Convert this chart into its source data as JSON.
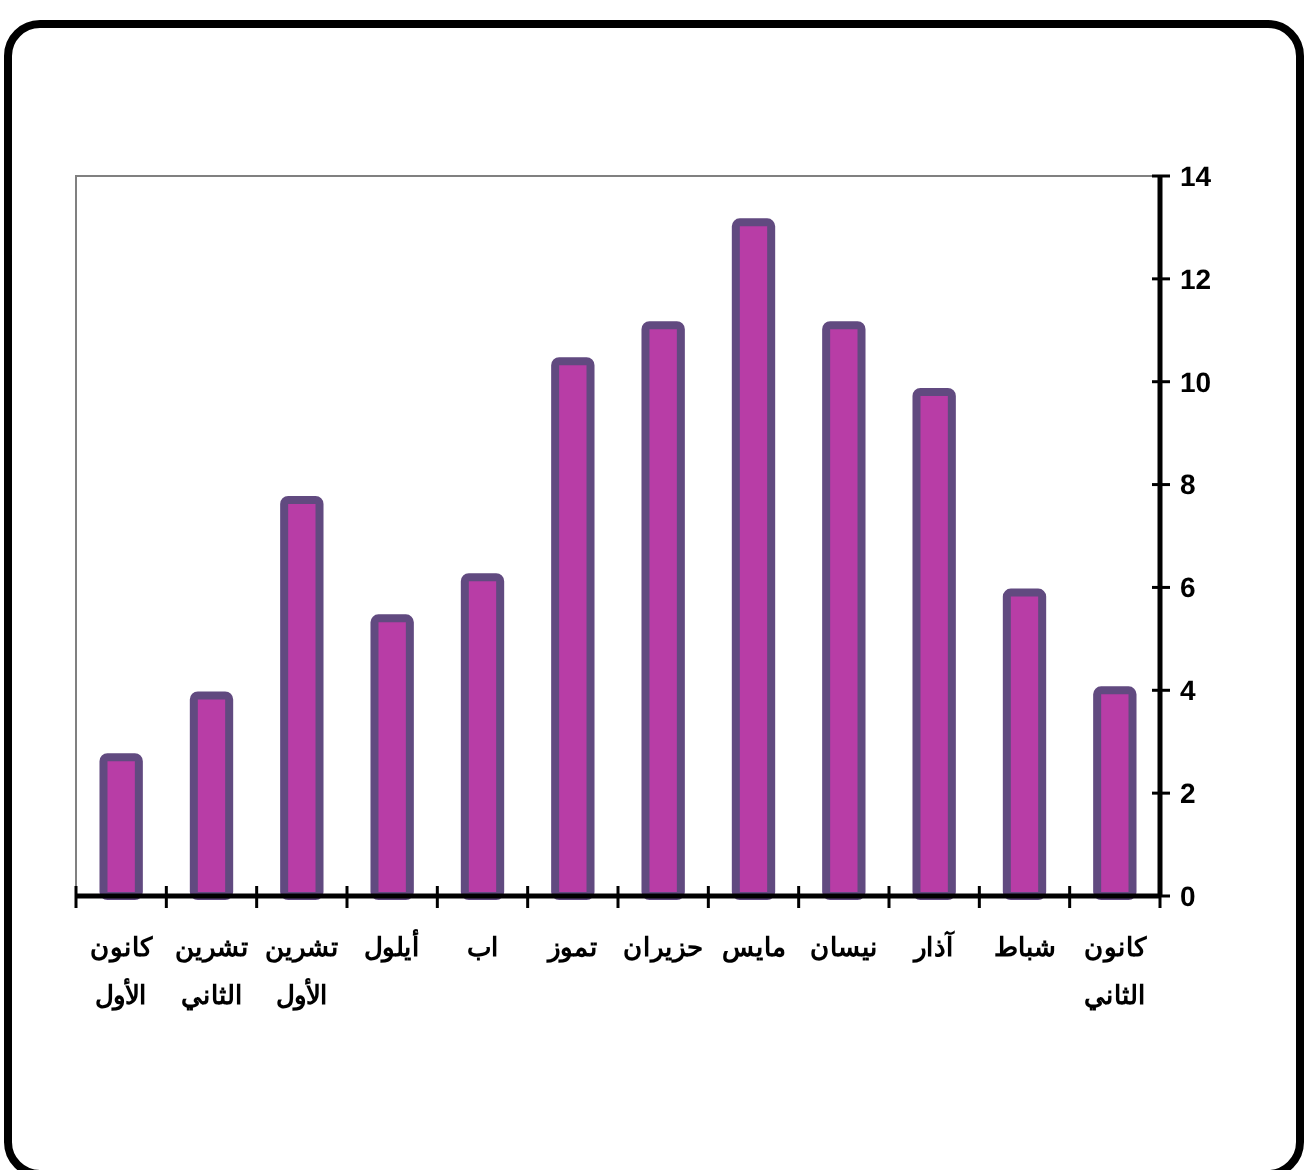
{
  "chart_data": {
    "type": "bar",
    "categories": [
      "كانون الأول",
      "تشرين الثاني",
      "تشرين الأول",
      "أيلول",
      "اب",
      "تموز",
      "حزيران",
      "مايس",
      "نيسان",
      "آذار",
      "شباط",
      "كانون الثاني"
    ],
    "values": [
      2.7,
      3.9,
      7.7,
      5.4,
      6.2,
      10.4,
      11.1,
      13.1,
      11.1,
      9.8,
      5.9,
      4.0
    ],
    "color": "#b83da6",
    "ylim": [
      0,
      14
    ],
    "yticks": [
      0,
      2,
      4,
      6,
      8,
      10,
      12,
      14
    ]
  }
}
